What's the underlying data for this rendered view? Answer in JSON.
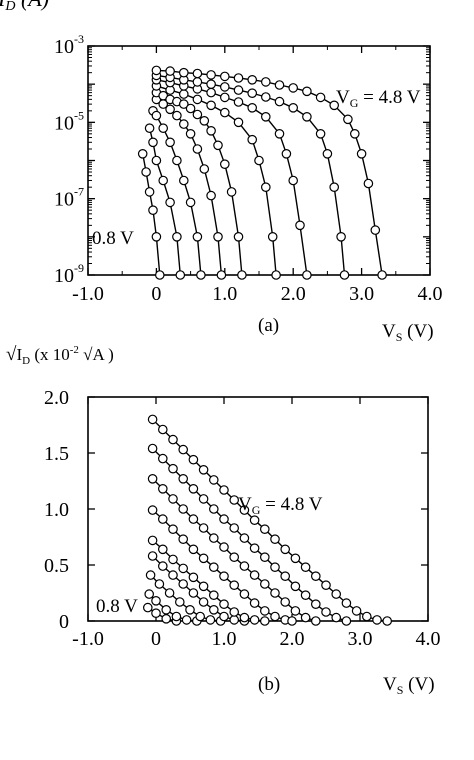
{
  "chart_data": [
    {
      "type": "line",
      "panel_label": "(a)",
      "ylabel": "I_D (A)",
      "xlabel": "V_S (V)",
      "yscale": "log",
      "xlim": [
        -1.0,
        4.0
      ],
      "ylim": [
        1e-09,
        0.001
      ],
      "x_ticks": [
        "-1.0",
        "0",
        "1.0",
        "2.0",
        "3.0",
        "4.0"
      ],
      "y_ticks": [
        {
          "base": "10",
          "exp": "-3"
        },
        {
          "base": "10",
          "exp": "-5"
        },
        {
          "base": "10",
          "exp": "-7"
        },
        {
          "base": "10",
          "exp": "-9"
        }
      ],
      "annotations": [
        "V_G = 4.8 V",
        "0.8 V"
      ],
      "grid": false,
      "series": [
        {
          "x": [
            -0.2,
            -0.15,
            -0.1,
            -0.05,
            0.0,
            0.05
          ],
          "y": [
            1.5e-06,
            5e-07,
            1.5e-07,
            5e-08,
            1e-08,
            1e-09
          ]
        },
        {
          "x": [
            -0.1,
            -0.05,
            0.0,
            0.1,
            0.2,
            0.3,
            0.35
          ],
          "y": [
            7e-06,
            3e-06,
            1e-06,
            3e-07,
            8e-08,
            1e-08,
            1e-09
          ]
        },
        {
          "x": [
            -0.05,
            0.0,
            0.1,
            0.2,
            0.3,
            0.4,
            0.5,
            0.6,
            0.65
          ],
          "y": [
            2e-05,
            1.5e-05,
            7e-06,
            3e-06,
            1e-06,
            3e-07,
            8e-08,
            1e-08,
            1e-09
          ]
        },
        {
          "x": [
            0.0,
            0.1,
            0.2,
            0.3,
            0.4,
            0.5,
            0.6,
            0.7,
            0.8,
            0.9,
            0.95
          ],
          "y": [
            4e-05,
            3e-05,
            2.2e-05,
            1.5e-05,
            9e-06,
            5e-06,
            2e-06,
            6e-07,
            1.2e-07,
            1e-08,
            1e-09
          ]
        },
        {
          "x": [
            0.0,
            0.1,
            0.2,
            0.3,
            0.4,
            0.5,
            0.6,
            0.7,
            0.8,
            0.9,
            1.0,
            1.1,
            1.2,
            1.25
          ],
          "y": [
            6e-05,
            5e-05,
            4e-05,
            3.5e-05,
            3e-05,
            2.3e-05,
            1.6e-05,
            1.1e-05,
            6e-06,
            2.5e-06,
            8e-07,
            1.5e-07,
            1e-08,
            1e-09
          ]
        },
        {
          "x": [
            0.0,
            0.2,
            0.4,
            0.6,
            0.8,
            1.0,
            1.2,
            1.4,
            1.5,
            1.6,
            1.7,
            1.75
          ],
          "y": [
            9e-05,
            7e-05,
            5.5e-05,
            4e-05,
            2.8e-05,
            1.8e-05,
            1e-05,
            3.5e-06,
            1e-06,
            2e-07,
            1e-08,
            1e-09
          ]
        },
        {
          "x": [
            0.0,
            0.2,
            0.4,
            0.6,
            0.8,
            1.0,
            1.2,
            1.4,
            1.6,
            1.8,
            1.9,
            2.0,
            2.1,
            2.2
          ],
          "y": [
            0.00013,
            0.00011,
            9e-05,
            7.5e-05,
            6e-05,
            4.5e-05,
            3.4e-05,
            2.4e-05,
            1.4e-05,
            5e-06,
            1.5e-06,
            3e-07,
            2e-08,
            1e-09
          ]
        },
        {
          "x": [
            0.0,
            0.2,
            0.4,
            0.6,
            0.8,
            1.0,
            1.2,
            1.4,
            1.6,
            1.8,
            2.0,
            2.2,
            2.4,
            2.5,
            2.6,
            2.7,
            2.75
          ],
          "y": [
            0.00017,
            0.00015,
            0.00013,
            0.000115,
            0.0001,
            8.5e-05,
            7e-05,
            5.8e-05,
            4.6e-05,
            3.5e-05,
            2.4e-05,
            1.4e-05,
            5e-06,
            1.5e-06,
            2e-07,
            1e-08,
            1e-09
          ]
        },
        {
          "x": [
            0.0,
            0.2,
            0.4,
            0.6,
            0.8,
            1.0,
            1.2,
            1.4,
            1.6,
            1.8,
            2.0,
            2.2,
            2.4,
            2.6,
            2.8,
            2.9,
            3.0,
            3.1,
            3.2,
            3.3
          ],
          "y": [
            0.00023,
            0.00022,
            0.0002,
            0.00019,
            0.000175,
            0.00016,
            0.000145,
            0.00013,
            0.000115,
            9.5e-05,
            8e-05,
            6.5e-05,
            4.5e-05,
            2.8e-05,
            1.2e-05,
            5e-06,
            1.5e-06,
            2.5e-07,
            1.5e-08,
            1e-09
          ]
        }
      ]
    },
    {
      "type": "line",
      "panel_label": "(b)",
      "ylabel": "√I_D (x 10^-2 √A)",
      "xlabel": "V_S (V)",
      "xlim": [
        -1.0,
        4.0
      ],
      "ylim": [
        0,
        2.0
      ],
      "x_ticks": [
        "-1.0",
        "0",
        "1.0",
        "2.0",
        "3.0",
        "4.0"
      ],
      "y_ticks": [
        "2.0",
        "1.5",
        "1.0",
        "0.5",
        "0"
      ],
      "annotations": [
        "V_G = 4.8 V",
        "0.8 V"
      ],
      "grid": false,
      "series": [
        {
          "x": [
            -0.12,
            0.0,
            0.15,
            0.3
          ],
          "y": [
            0.12,
            0.07,
            0.02,
            0.0
          ]
        },
        {
          "x": [
            -0.1,
            0.0,
            0.15,
            0.3,
            0.45,
            0.6
          ],
          "y": [
            0.24,
            0.18,
            0.1,
            0.04,
            0.01,
            0.0
          ]
        },
        {
          "x": [
            -0.08,
            0.05,
            0.2,
            0.35,
            0.5,
            0.65,
            0.8,
            0.95
          ],
          "y": [
            0.41,
            0.33,
            0.25,
            0.17,
            0.1,
            0.04,
            0.01,
            0.0
          ]
        },
        {
          "x": [
            -0.05,
            0.1,
            0.25,
            0.4,
            0.55,
            0.7,
            0.85,
            1.0,
            1.15,
            1.3
          ],
          "y": [
            0.58,
            0.49,
            0.41,
            0.33,
            0.25,
            0.17,
            0.1,
            0.04,
            0.01,
            0.0
          ]
        },
        {
          "x": [
            -0.05,
            0.1,
            0.25,
            0.4,
            0.55,
            0.7,
            0.85,
            1.0,
            1.15,
            1.3,
            1.45,
            1.6
          ],
          "y": [
            0.72,
            0.64,
            0.55,
            0.47,
            0.39,
            0.31,
            0.23,
            0.15,
            0.08,
            0.03,
            0.01,
            0.0
          ]
        },
        {
          "x": [
            -0.05,
            0.1,
            0.25,
            0.4,
            0.55,
            0.7,
            0.85,
            1.0,
            1.15,
            1.3,
            1.45,
            1.6,
            1.75,
            1.9,
            2.0
          ],
          "y": [
            0.99,
            0.91,
            0.82,
            0.73,
            0.64,
            0.56,
            0.48,
            0.4,
            0.32,
            0.24,
            0.16,
            0.09,
            0.04,
            0.01,
            0.0
          ]
        },
        {
          "x": [
            -0.05,
            0.1,
            0.25,
            0.4,
            0.55,
            0.7,
            0.85,
            1.0,
            1.15,
            1.3,
            1.45,
            1.6,
            1.75,
            1.9,
            2.05,
            2.2,
            2.35
          ],
          "y": [
            1.27,
            1.18,
            1.09,
            1.0,
            0.91,
            0.83,
            0.74,
            0.66,
            0.57,
            0.49,
            0.41,
            0.33,
            0.25,
            0.17,
            0.09,
            0.03,
            0.0
          ]
        },
        {
          "x": [
            -0.05,
            0.1,
            0.25,
            0.4,
            0.55,
            0.7,
            0.85,
            1.0,
            1.15,
            1.3,
            1.45,
            1.6,
            1.75,
            1.9,
            2.05,
            2.2,
            2.35,
            2.5,
            2.65,
            2.8
          ],
          "y": [
            1.54,
            1.45,
            1.36,
            1.27,
            1.18,
            1.09,
            1.0,
            0.91,
            0.83,
            0.74,
            0.65,
            0.57,
            0.48,
            0.4,
            0.31,
            0.23,
            0.15,
            0.08,
            0.03,
            0.0
          ]
        },
        {
          "x": [
            -0.05,
            0.1,
            0.25,
            0.4,
            0.55,
            0.7,
            0.85,
            1.0,
            1.15,
            1.3,
            1.45,
            1.6,
            1.75,
            1.9,
            2.05,
            2.2,
            2.35,
            2.5,
            2.65,
            2.8,
            2.95,
            3.1,
            3.25,
            3.4
          ],
          "y": [
            1.8,
            1.71,
            1.62,
            1.53,
            1.44,
            1.35,
            1.26,
            1.17,
            1.08,
            0.99,
            0.9,
            0.82,
            0.73,
            0.64,
            0.56,
            0.48,
            0.4,
            0.32,
            0.24,
            0.16,
            0.09,
            0.04,
            0.01,
            0.0
          ]
        }
      ]
    }
  ]
}
